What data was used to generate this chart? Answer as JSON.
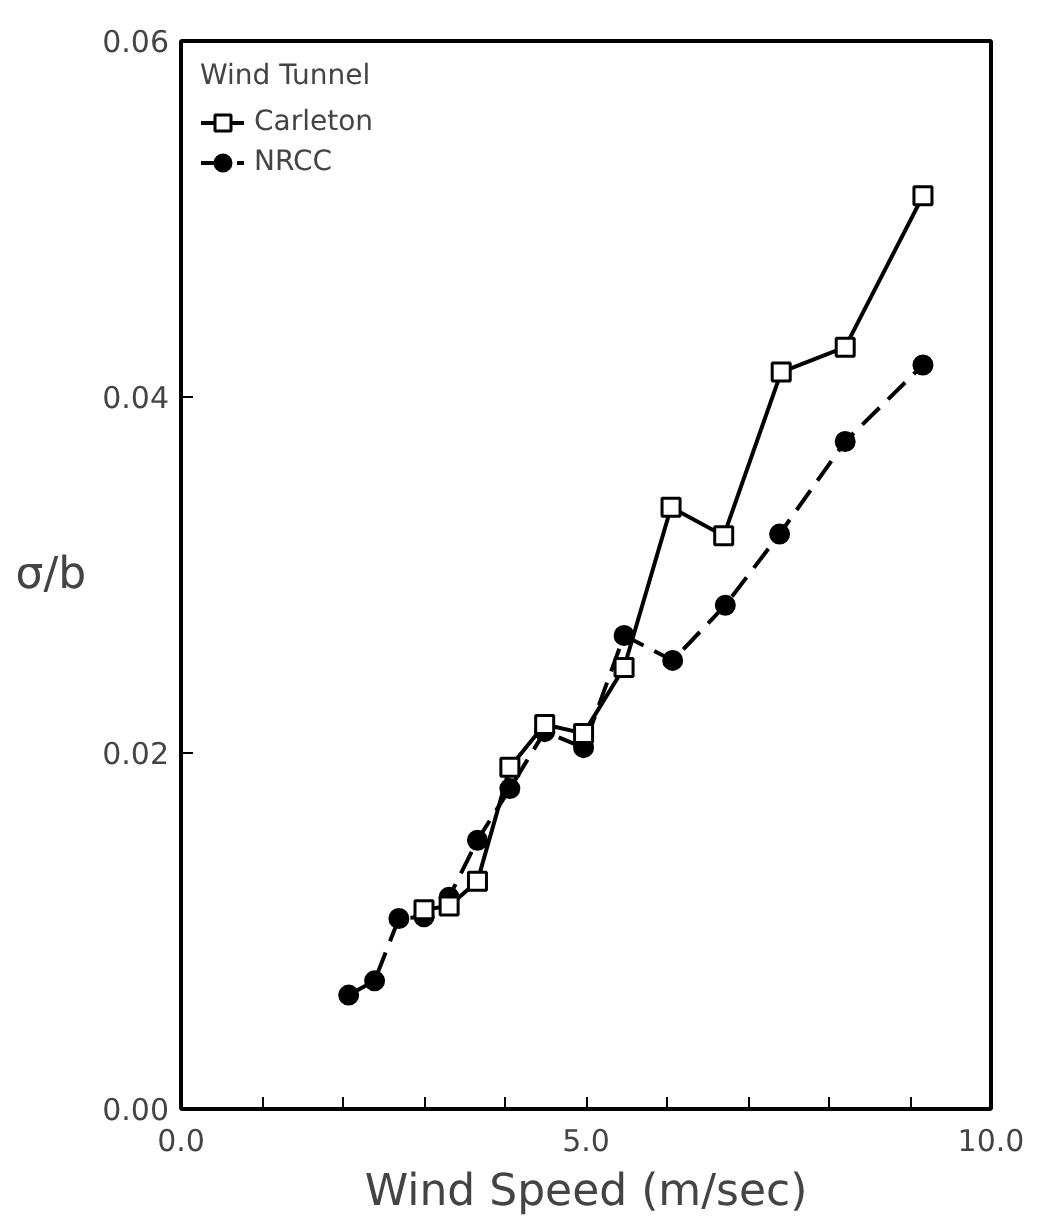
{
  "chart_data": {
    "type": "line",
    "xlabel": "Wind Speed (m/sec)",
    "ylabel": "σ/b",
    "legend_title": "Wind Tunnel",
    "xlim": [
      0,
      10
    ],
    "ylim": [
      0,
      0.06
    ],
    "xticks": [
      {
        "value": 0,
        "label": "0.0"
      },
      {
        "value": 1,
        "label": null
      },
      {
        "value": 2,
        "label": null
      },
      {
        "value": 3,
        "label": null
      },
      {
        "value": 4,
        "label": null
      },
      {
        "value": 5,
        "label": "5.0"
      },
      {
        "value": 6,
        "label": null
      },
      {
        "value": 7,
        "label": null
      },
      {
        "value": 8,
        "label": null
      },
      {
        "value": 9,
        "label": null
      },
      {
        "value": 10,
        "label": "10.0"
      }
    ],
    "yticks": [
      {
        "value": 0,
        "label": "0.00"
      },
      {
        "value": 0.02,
        "label": "0.02"
      },
      {
        "value": 0.04,
        "label": "0.04"
      },
      {
        "value": 0.06,
        "label": "0.06"
      }
    ],
    "grid": false,
    "legend": "top left",
    "series": [
      {
        "name": "Carleton",
        "color": "#000000",
        "marker": "square",
        "line_style": "solid",
        "x": [
          3.0,
          3.31,
          3.66,
          4.06,
          4.49,
          4.97,
          5.47,
          6.05,
          6.7,
          7.41,
          8.2,
          9.16
        ],
        "values": [
          0.0112,
          0.0114,
          0.0128,
          0.0192,
          0.0216,
          0.0211,
          0.0248,
          0.0338,
          0.0322,
          0.0414,
          0.0428,
          0.0513
        ]
      },
      {
        "name": "NRCC",
        "color": "#000000",
        "marker": "circle",
        "line_style": "dashed",
        "x": [
          2.07,
          2.39,
          2.69,
          3.0,
          3.31,
          3.66,
          4.06,
          4.49,
          4.97,
          5.47,
          6.07,
          6.72,
          7.39,
          8.2,
          9.16
        ],
        "values": [
          0.0064,
          0.0072,
          0.0107,
          0.0108,
          0.0119,
          0.0151,
          0.018,
          0.0212,
          0.0203,
          0.0266,
          0.0252,
          0.0283,
          0.0323,
          0.0375,
          0.0418
        ]
      }
    ]
  }
}
